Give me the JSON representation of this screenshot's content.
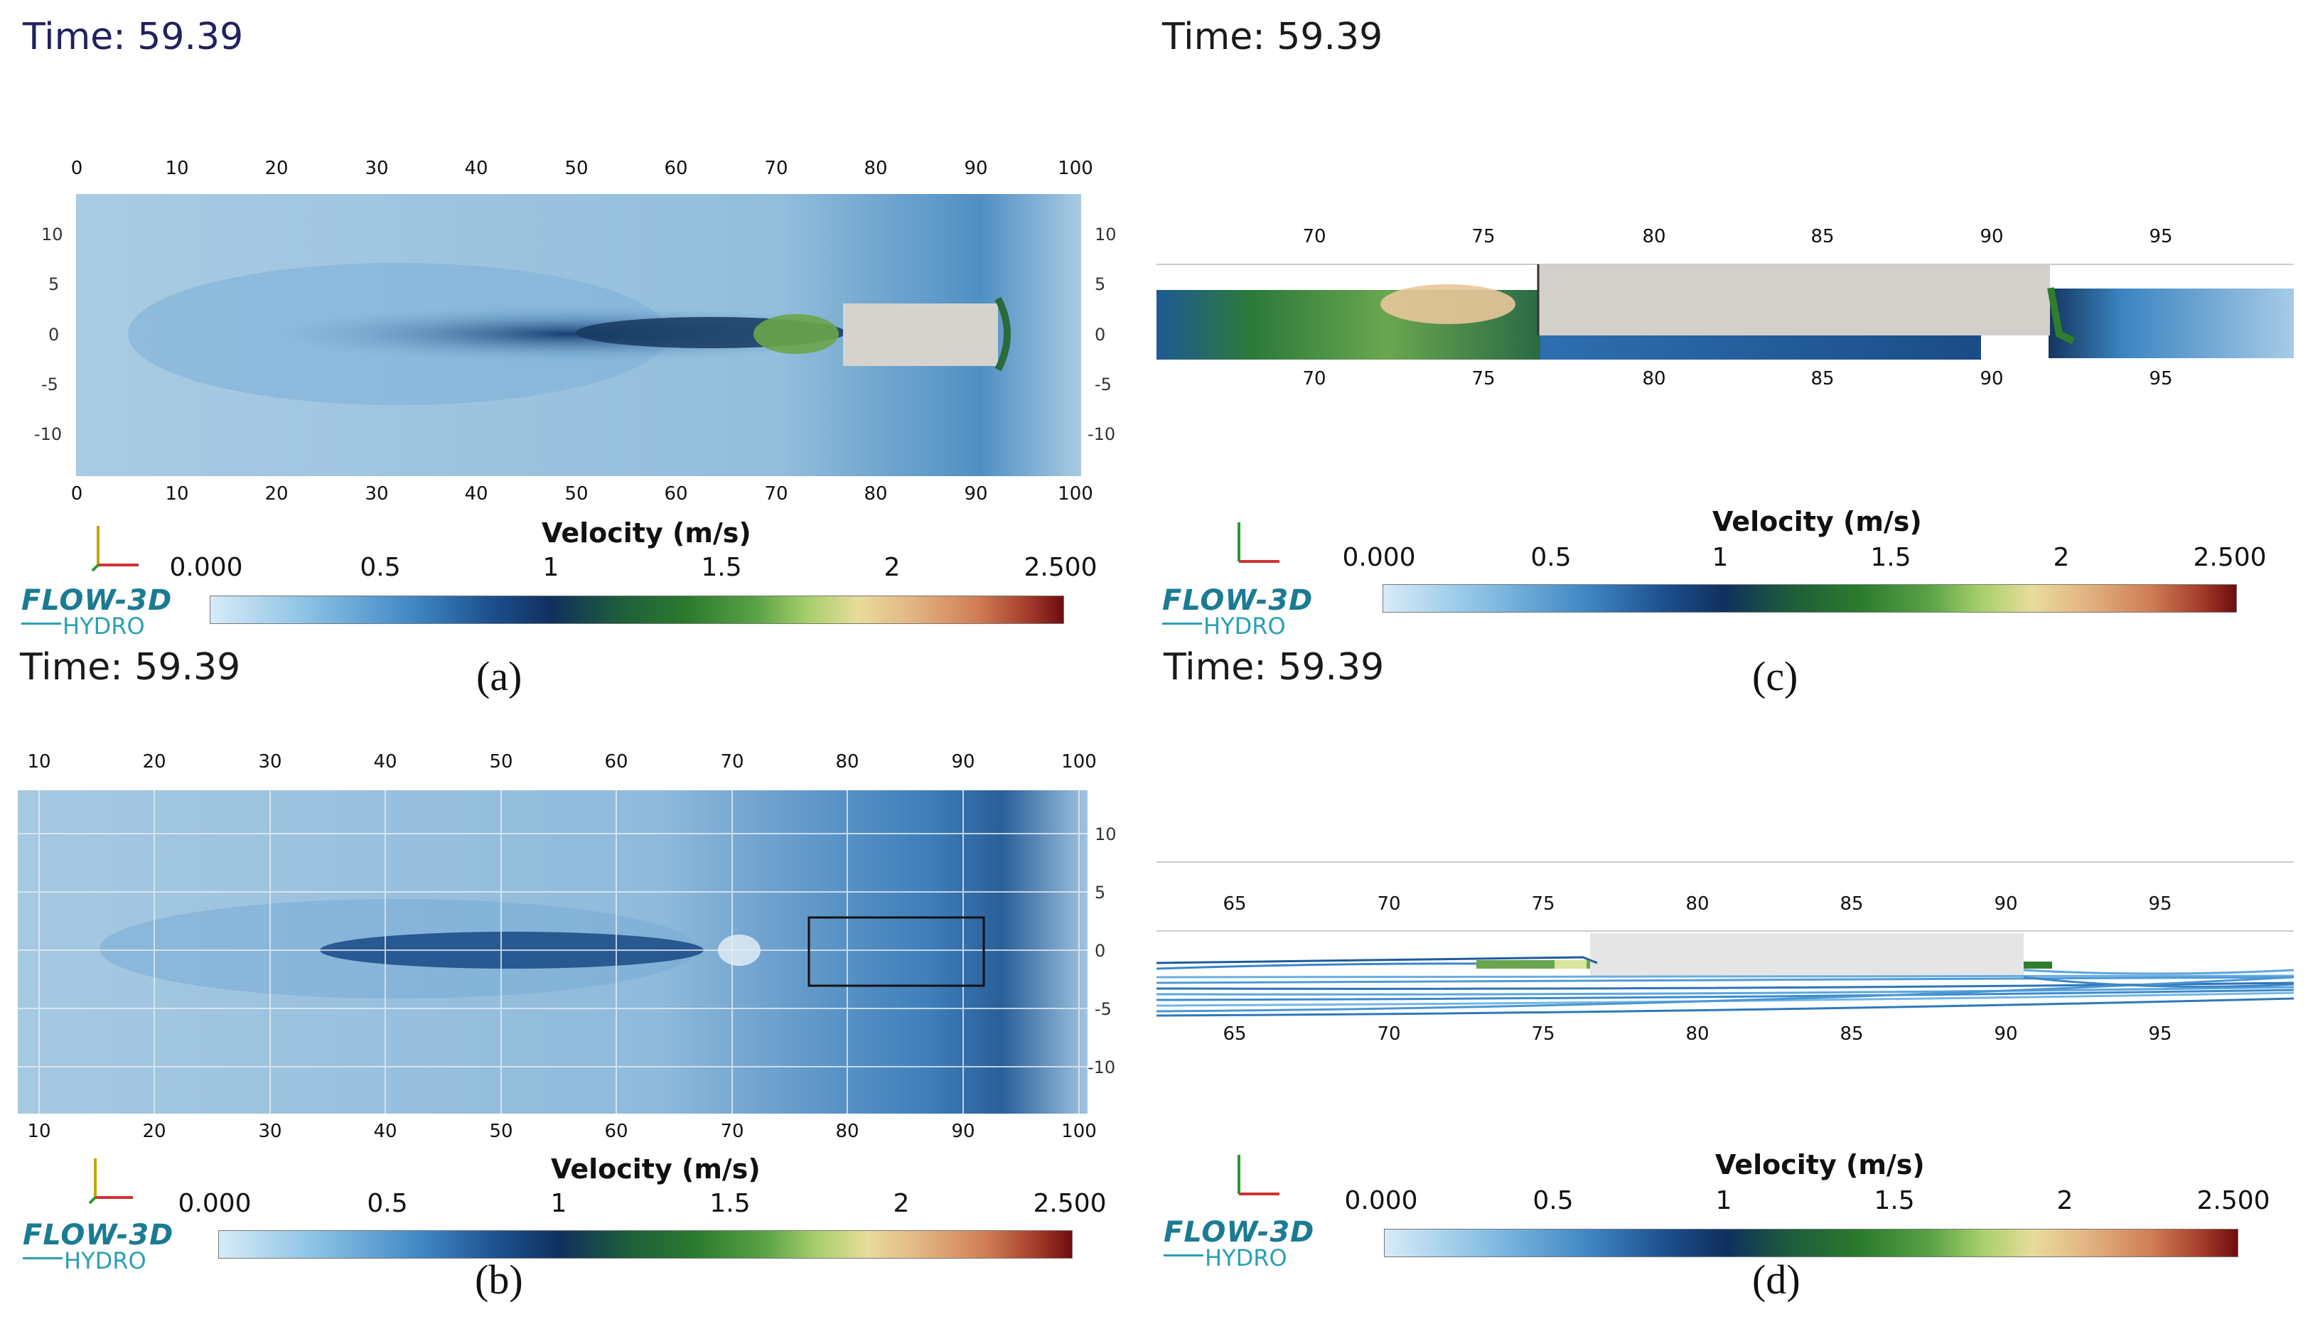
{
  "time_label": "Time: 59.39",
  "velocity_title": "Velocity (m/s)",
  "colorbar_ticks": [
    "0.000",
    "0.5",
    "1",
    "1.5",
    "2",
    "2.500"
  ],
  "logo": {
    "line1": "FLOW-3D",
    "line2": "HYDRO"
  },
  "panels": {
    "a": {
      "caption": "(a)",
      "x_ticks": [
        "0",
        "10",
        "20",
        "30",
        "40",
        "50",
        "60",
        "70",
        "80",
        "90",
        "100"
      ],
      "y_ticks": [
        "10",
        "5",
        "0",
        "-5",
        "-10"
      ]
    },
    "b": {
      "caption": "(b)",
      "x_ticks": [
        "10",
        "20",
        "30",
        "40",
        "50",
        "60",
        "70",
        "80",
        "90",
        "100"
      ],
      "y_ticks": [
        "10",
        "5",
        "0",
        "-5",
        "-10"
      ]
    },
    "c": {
      "caption": "(c)",
      "x_ticks": [
        "70",
        "75",
        "80",
        "85",
        "90",
        "95"
      ]
    },
    "d": {
      "caption": "(d)",
      "x_ticks": [
        "65",
        "70",
        "75",
        "80",
        "85",
        "90",
        "95"
      ]
    }
  }
}
